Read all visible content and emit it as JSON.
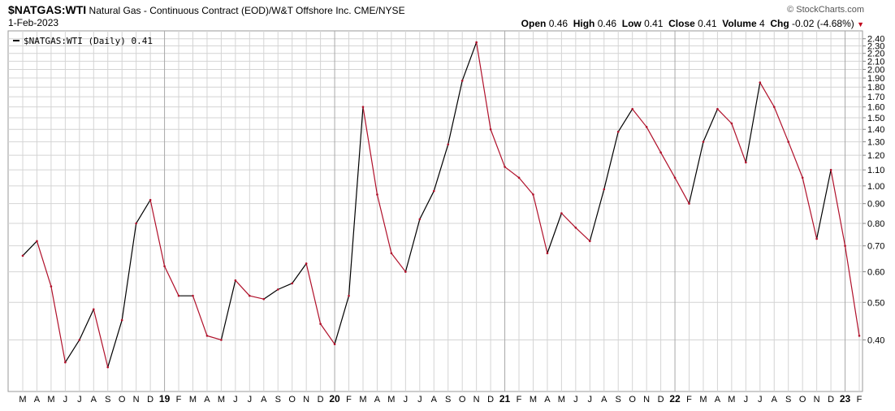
{
  "header": {
    "symbol": "$NATGAS:WTI",
    "description": "Natural Gas - Continuous Contract (EOD)/W&T Offshore Inc.",
    "exchange": "CME/NYSE",
    "date": "1-Feb-2023",
    "brand": "© StockCharts.com",
    "open_label": "Open",
    "open": "0.46",
    "high_label": "High",
    "high": "0.46",
    "low_label": "Low",
    "low": "0.41",
    "close_label": "Close",
    "close": "0.41",
    "volume_label": "Volume",
    "volume": "4",
    "chg_label": "Chg",
    "chg": "-0.02 (-4.68%)"
  },
  "colors": {
    "up": "#000000",
    "down": "#b0102a",
    "grid": "#d4d4d4"
  },
  "chart_data": {
    "type": "line",
    "legend": "$NATGAS:WTI (Daily) 0.41",
    "yscale": "log",
    "ylim": [
      0.3,
      2.42
    ],
    "yticks": [
      "2.40",
      "2.30",
      "2.20",
      "2.10",
      "2.00",
      "1.90",
      "1.80",
      "1.70",
      "1.60",
      "1.50",
      "1.40",
      "1.30",
      "1.20",
      "1.10",
      "1.00",
      "0.90",
      "0.80",
      "0.70",
      "0.60",
      "0.50",
      "0.40"
    ],
    "xticks": [
      "M",
      "A",
      "M",
      "J",
      "J",
      "A",
      "S",
      "O",
      "N",
      "D",
      "19",
      "F",
      "M",
      "A",
      "M",
      "J",
      "J",
      "A",
      "S",
      "O",
      "N",
      "D",
      "20",
      "F",
      "M",
      "A",
      "M",
      "J",
      "J",
      "A",
      "S",
      "O",
      "N",
      "D",
      "21",
      "F",
      "M",
      "A",
      "M",
      "J",
      "J",
      "A",
      "S",
      "O",
      "N",
      "D",
      "22",
      "F",
      "M",
      "A",
      "M",
      "J",
      "J",
      "A",
      "S",
      "O",
      "N",
      "D",
      "23",
      "F"
    ],
    "year_ticks": [
      "19",
      "20",
      "21",
      "22",
      "23"
    ],
    "x": [
      "2018-03",
      "2018-04",
      "2018-05",
      "2018-06",
      "2018-07",
      "2018-08",
      "2018-09",
      "2018-10",
      "2018-11",
      "2018-12",
      "2019-01",
      "2019-02",
      "2019-03",
      "2019-04",
      "2019-05",
      "2019-06",
      "2019-07",
      "2019-08",
      "2019-09",
      "2019-10",
      "2019-11",
      "2019-12",
      "2020-01",
      "2020-02",
      "2020-03",
      "2020-04",
      "2020-05",
      "2020-06",
      "2020-07",
      "2020-08",
      "2020-09",
      "2020-10",
      "2020-11",
      "2020-12",
      "2021-01",
      "2021-02",
      "2021-03",
      "2021-04",
      "2021-05",
      "2021-06",
      "2021-07",
      "2021-08",
      "2021-09",
      "2021-10",
      "2021-11",
      "2021-12",
      "2022-01",
      "2022-02",
      "2022-03",
      "2022-04",
      "2022-05",
      "2022-06",
      "2022-07",
      "2022-08",
      "2022-09",
      "2022-10",
      "2022-11",
      "2022-12",
      "2023-01",
      "2023-02"
    ],
    "values": [
      0.66,
      0.72,
      0.55,
      0.35,
      0.4,
      0.48,
      0.34,
      0.45,
      0.8,
      0.92,
      0.62,
      0.52,
      0.52,
      0.41,
      0.4,
      0.57,
      0.52,
      0.51,
      0.54,
      0.56,
      0.63,
      0.44,
      0.39,
      0.52,
      1.6,
      0.95,
      0.67,
      0.6,
      0.82,
      0.97,
      1.28,
      1.87,
      2.35,
      1.4,
      1.12,
      1.05,
      0.95,
      0.67,
      0.85,
      0.78,
      0.72,
      0.98,
      1.38,
      1.58,
      1.42,
      1.22,
      1.05,
      0.9,
      1.3,
      1.58,
      1.45,
      1.15,
      1.85,
      1.6,
      1.3,
      1.05,
      0.73,
      1.1,
      0.7,
      0.41
    ]
  }
}
